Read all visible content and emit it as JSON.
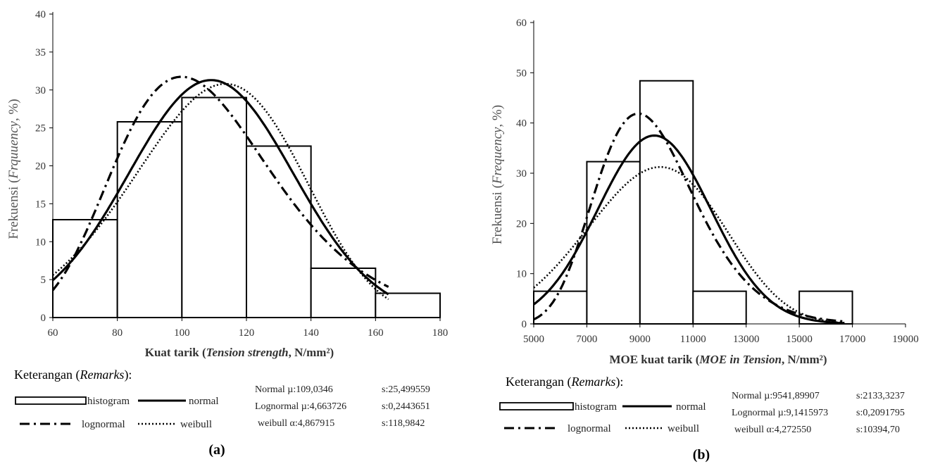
{
  "charts": [
    {
      "id": "a",
      "caption": "(a)",
      "ylabel_pre": "Frekuensi (",
      "ylabel_it": "Frquuency",
      "ylabel_post": ", %)",
      "xlabel_pre": "Kuat tarik (",
      "xlabel_it": "Tension strength",
      "xlabel_post": ", N/mm²)",
      "remarks_pre": "Keterangan (",
      "remarks_it": "Remarks",
      "remarks_post": "):",
      "legend": {
        "histogram": "histogram",
        "normal": "normal",
        "lognormal": "lognormal",
        "weibull": "weibull"
      },
      "params": [
        [
          "Normal µ:109,0346",
          "s:25,499559"
        ],
        [
          "Lognormal µ:4,663726",
          "s:0,2443651"
        ],
        [
          "weibull α:4,867915",
          "s:118,9842"
        ]
      ]
    },
    {
      "id": "b",
      "caption": "(b)",
      "ylabel_pre": "Frekuensi (",
      "ylabel_it": "Frequency",
      "ylabel_post": ", %)",
      "xlabel_pre": "MOE kuat tarik (",
      "xlabel_it": "MOE in Tension",
      "xlabel_post": ", N/mm²)",
      "remarks_pre": "Keterangan (",
      "remarks_it": "Remarks",
      "remarks_post": "):",
      "legend": {
        "histogram": "histogram",
        "normal": "normal",
        "lognormal": "lognormal",
        "weibull": "weibull"
      },
      "params": [
        [
          "Normal µ:9541,89907",
          "s:2133,3237"
        ],
        [
          "Lognormal µ:9,1415973",
          "s:0,2091795"
        ],
        [
          "weibull α:4,272550",
          "s:10394,70"
        ]
      ]
    }
  ],
  "chart_data": [
    {
      "type": "bar",
      "xlim": [
        60,
        180
      ],
      "ylim": [
        0,
        40
      ],
      "xticks": [
        60,
        80,
        100,
        120,
        140,
        160,
        180
      ],
      "yticks": [
        0,
        5,
        10,
        15,
        20,
        25,
        30,
        35,
        40
      ],
      "bins": [
        {
          "from": 60,
          "to": 80,
          "value": 12.9
        },
        {
          "from": 80,
          "to": 100,
          "value": 25.8
        },
        {
          "from": 100,
          "to": 120,
          "value": 29.0
        },
        {
          "from": 120,
          "to": 140,
          "value": 22.6
        },
        {
          "from": 140,
          "to": 160,
          "value": 6.5
        },
        {
          "from": 160,
          "to": 180,
          "value": 3.2
        }
      ],
      "curves": {
        "normal": {
          "mu": 109.0346,
          "s": 25.499559,
          "x_range": [
            60,
            164
          ]
        },
        "lognormal": {
          "mu": 4.663726,
          "s": 0.2443651,
          "x_range": [
            60,
            164
          ]
        },
        "weibull": {
          "alpha": 4.867915,
          "s": 118.9842,
          "x_range": [
            60,
            164
          ]
        }
      },
      "curve_peak": 31.3
    },
    {
      "type": "bar",
      "xlim": [
        5000,
        19000
      ],
      "ylim": [
        0,
        60
      ],
      "xticks": [
        5000,
        7000,
        9000,
        11000,
        13000,
        15000,
        17000,
        19000
      ],
      "yticks": [
        0,
        10,
        20,
        30,
        40,
        50,
        60
      ],
      "bins": [
        {
          "from": 5000,
          "to": 7000,
          "value": 6.5
        },
        {
          "from": 7000,
          "to": 9000,
          "value": 32.3
        },
        {
          "from": 9000,
          "to": 11000,
          "value": 48.4
        },
        {
          "from": 11000,
          "to": 13000,
          "value": 6.5
        },
        {
          "from": 13000,
          "to": 15000,
          "value": 0
        },
        {
          "from": 15000,
          "to": 17000,
          "value": 6.5
        }
      ],
      "curves": {
        "normal": {
          "mu": 9541.89907,
          "s": 2133.3237,
          "x_range": [
            5000,
            16700
          ]
        },
        "lognormal": {
          "mu": 9.1415973,
          "s": 0.2091795,
          "x_range": [
            5000,
            16700
          ]
        },
        "weibull": {
          "alpha": 4.27255,
          "s": 10394.7,
          "x_range": [
            5000,
            16700
          ]
        }
      },
      "curve_peak": 37.5
    }
  ]
}
